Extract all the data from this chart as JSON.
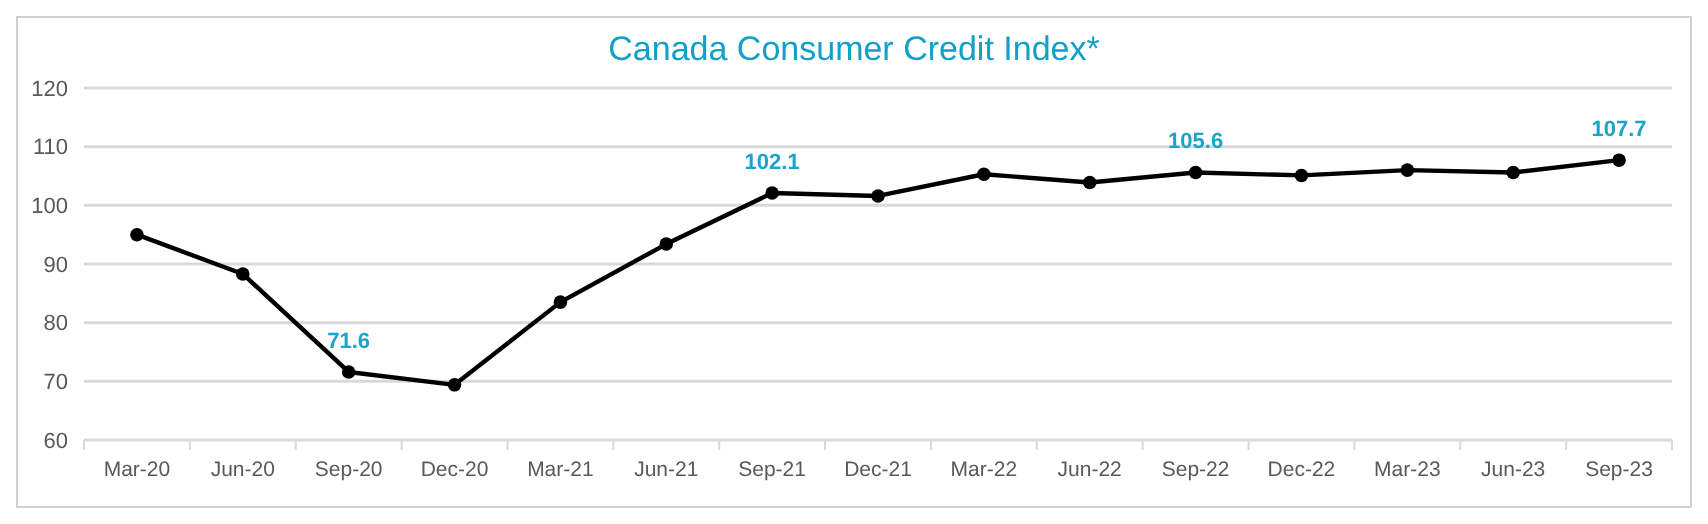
{
  "chart_data": {
    "type": "line",
    "title": "Canada Consumer Credit Index*",
    "categories": [
      "Mar-20",
      "Jun-20",
      "Sep-20",
      "Dec-20",
      "Mar-21",
      "Jun-21",
      "Sep-21",
      "Dec-21",
      "Mar-22",
      "Jun-22",
      "Sep-22",
      "Dec-22",
      "Mar-23",
      "Jun-23",
      "Sep-23"
    ],
    "series": [
      {
        "color": "#000000",
        "values": [
          95.0,
          88.3,
          71.6,
          69.4,
          83.5,
          93.4,
          102.1,
          101.6,
          105.3,
          103.9,
          105.6,
          105.1,
          106.0,
          105.6,
          107.7
        ],
        "value_labels": [
          null,
          null,
          "71.6",
          null,
          null,
          null,
          "102.1",
          null,
          null,
          null,
          "105.6",
          null,
          null,
          null,
          "107.7"
        ]
      }
    ],
    "ylim": [
      60,
      120
    ],
    "yticks": [
      60,
      70,
      80,
      90,
      100,
      110,
      120
    ],
    "grid": "y",
    "marker": "circle",
    "line_style": "solid"
  }
}
